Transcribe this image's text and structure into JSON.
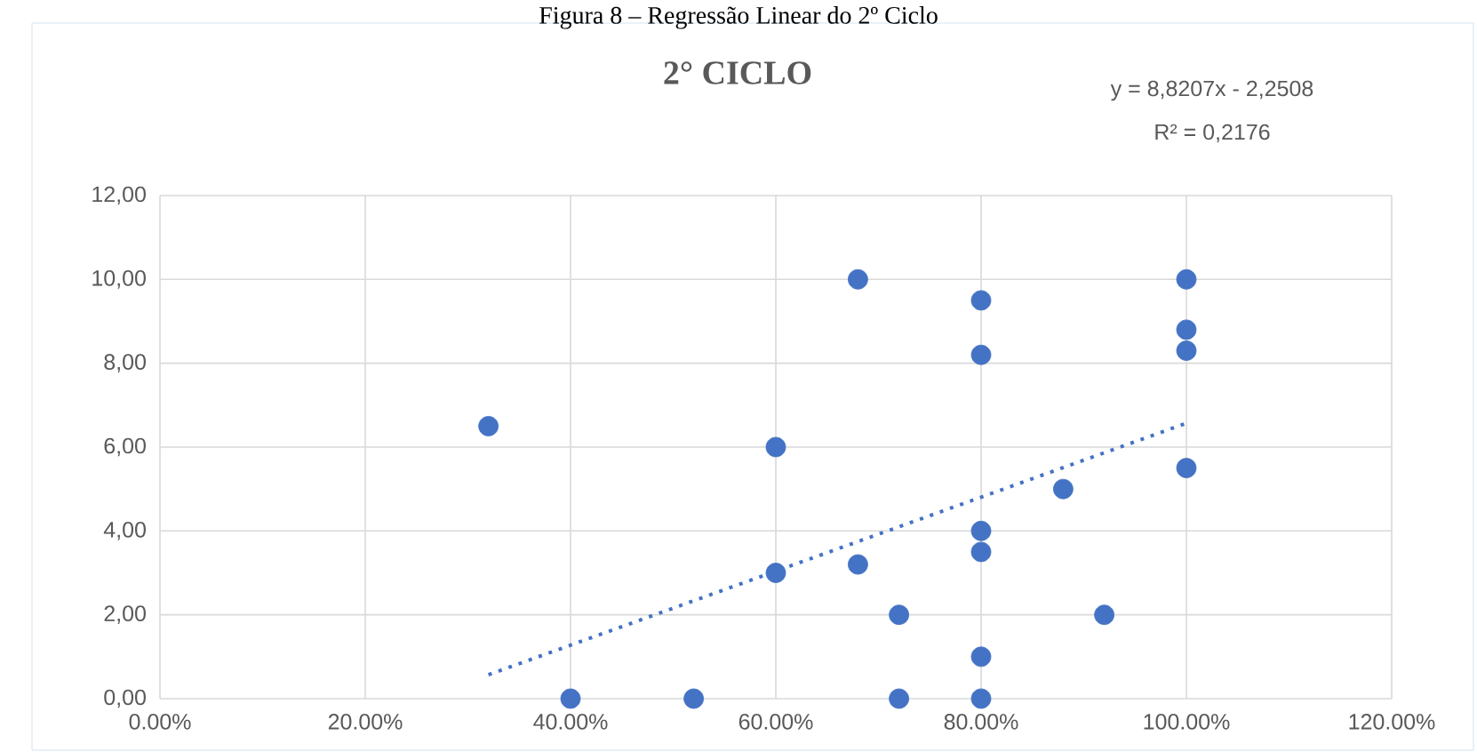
{
  "chart_data": {
    "type": "scatter",
    "title": "2° CICLO",
    "annotations": [
      "Figura 8 – Regressão Linear do 2º Ciclo",
      "y = 8,8207x - 2,2508",
      "R² = 0,2176"
    ],
    "series": [
      {
        "color": "#4472c4",
        "marker": "circle",
        "x": [
          32,
          40,
          52,
          60,
          60,
          68,
          68,
          72,
          72,
          80,
          80,
          80,
          80,
          80,
          80,
          88,
          92,
          100,
          100,
          100,
          100
        ],
        "values": [
          6.5,
          0,
          0,
          6,
          3,
          10,
          3.2,
          2,
          0,
          9.5,
          8.2,
          4,
          3.5,
          1,
          0,
          5,
          2,
          10,
          8.8,
          8.3,
          5.5
        ]
      },
      {
        "type": "line",
        "color": "#4472c4",
        "line_style": "dotted",
        "marker": "none",
        "x": [
          32,
          100
        ],
        "values": [
          0.57,
          6.57
        ]
      }
    ],
    "xlim": [
      0,
      120
    ],
    "xticks": [
      {
        "value": 0,
        "label": "0.00%"
      },
      {
        "value": 20,
        "label": "20.00%"
      },
      {
        "value": 40,
        "label": "40.00%"
      },
      {
        "value": 60,
        "label": "60.00%"
      },
      {
        "value": 80,
        "label": "80.00%"
      },
      {
        "value": 100,
        "label": "100.00%"
      },
      {
        "value": 120,
        "label": "120.00%"
      }
    ],
    "ylim": [
      0,
      12
    ],
    "yticks": [
      {
        "value": 0,
        "label": "0,00"
      },
      {
        "value": 2,
        "label": "2,00"
      },
      {
        "value": 4,
        "label": "4,00"
      },
      {
        "value": 6,
        "label": "6,00"
      },
      {
        "value": 8,
        "label": "8,00"
      },
      {
        "value": 10,
        "label": "10,00"
      },
      {
        "value": 12,
        "label": "12,00"
      }
    ],
    "grid": true
  }
}
